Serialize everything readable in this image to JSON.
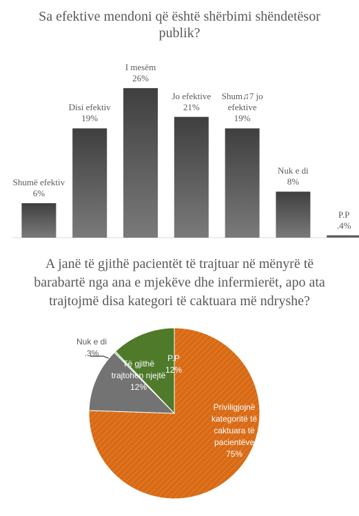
{
  "chart_data": [
    {
      "type": "bar",
      "title": "Sa efektive mendoni që është shërbimi shëndetësor publik?",
      "categories": [
        "Shumë efektiv",
        "Disi efektiv",
        "I mesëm",
        "Jo efektive",
        "Shum♫7 jo efektive",
        "Nuk e di",
        "P.P"
      ],
      "values": [
        6,
        19,
        26,
        21,
        19,
        8,
        0.4
      ],
      "value_labels": [
        "6%",
        "19%",
        "26%",
        "21%",
        "19%",
        "8%",
        ".4%"
      ],
      "color": "#595959"
    },
    {
      "type": "pie",
      "title": "A janë të gjithë pacientët të trajtuar në mënyrë të barabartë nga ana e mjekëve dhe infermierët, apo ata trajtojmë disa kategori të caktuara më ndryshe?",
      "categories": [
        "Priviligjojnë kategoritë të caktuara të pacientëve",
        "Të gjithë trajtohen njejtë",
        "Nuk e di",
        "P.P"
      ],
      "values": [
        75,
        12,
        0.3,
        12
      ],
      "value_labels": [
        "75%",
        "12%",
        ".3%",
        "12%"
      ],
      "colors": [
        "#d86a16",
        "#737373",
        "#a9d18e",
        "#4e7a2a"
      ]
    }
  ]
}
